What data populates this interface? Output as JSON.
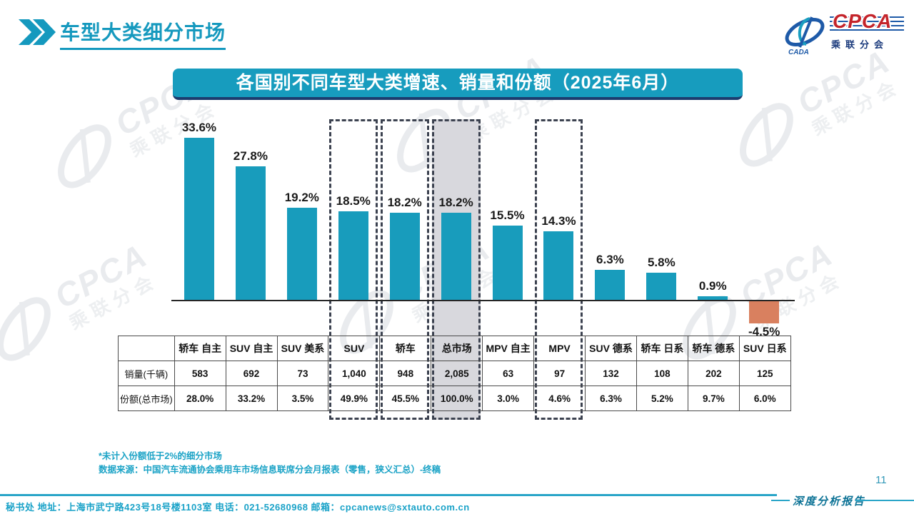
{
  "header": {
    "title": "车型大类细分市场",
    "logo": {
      "cpca": "CPCA",
      "cada": "CADA",
      "subtitle": "乘联分会"
    }
  },
  "banner": {
    "title": "各国别不同车型大类增速、销量和份额（2025年6月）"
  },
  "chart_data": {
    "type": "bar",
    "title": "各国别不同车型大类增速、销量和份额（2025年6月）",
    "categories": [
      "轿车 自主",
      "SUV 自主",
      "SUV 美系",
      "SUV",
      "轿车",
      "总市场",
      "MPV 自主",
      "MPV",
      "SUV 德系",
      "轿车 日系",
      "轿车 德系",
      "SUV 日系"
    ],
    "values": [
      33.6,
      27.8,
      19.2,
      18.5,
      18.2,
      18.2,
      15.5,
      14.3,
      6.3,
      5.8,
      0.9,
      -4.5
    ],
    "value_labels": [
      "33.6%",
      "27.8%",
      "19.2%",
      "18.5%",
      "18.2%",
      "18.2%",
      "15.5%",
      "14.3%",
      "6.3%",
      "5.8%",
      "0.9%",
      "-4.5%"
    ],
    "ylim": [
      -6,
      36
    ],
    "grid": false,
    "legend": "none",
    "bar_color": "#189cbc",
    "negative_bar_color": "#d9805f",
    "highlight_dashed": [
      "SUV",
      "轿车",
      "总市场",
      "MPV"
    ],
    "highlight_fill": "总市场",
    "table": {
      "row_labels": [
        "销量(千辆)",
        "份额(总市场)"
      ],
      "sales_thousand": [
        "583",
        "692",
        "73",
        "1,040",
        "948",
        "2,085",
        "63",
        "97",
        "132",
        "108",
        "202",
        "125"
      ],
      "share_of_market": [
        "28.0%",
        "33.2%",
        "3.5%",
        "49.9%",
        "45.5%",
        "100.0%",
        "3.0%",
        "4.6%",
        "6.3%",
        "5.2%",
        "9.7%",
        "6.0%"
      ]
    }
  },
  "notes": {
    "line1": "*未计入份额低于2%的细分市场",
    "line2": "数据来源：中国汽车流通协会乘用车市场信息联席分会月报表（零售，狭义汇总）-终稿"
  },
  "footer": {
    "contact": "秘书处   地址：上海市武宁路423号18号楼1103室  电话：021-52680968   邮箱：cpcanews@sxtauto.com.cn",
    "page_number": "11",
    "report_label": "深度分析报告"
  },
  "watermark": {
    "cpca": "CPCA",
    "sub": "乘联分会"
  }
}
